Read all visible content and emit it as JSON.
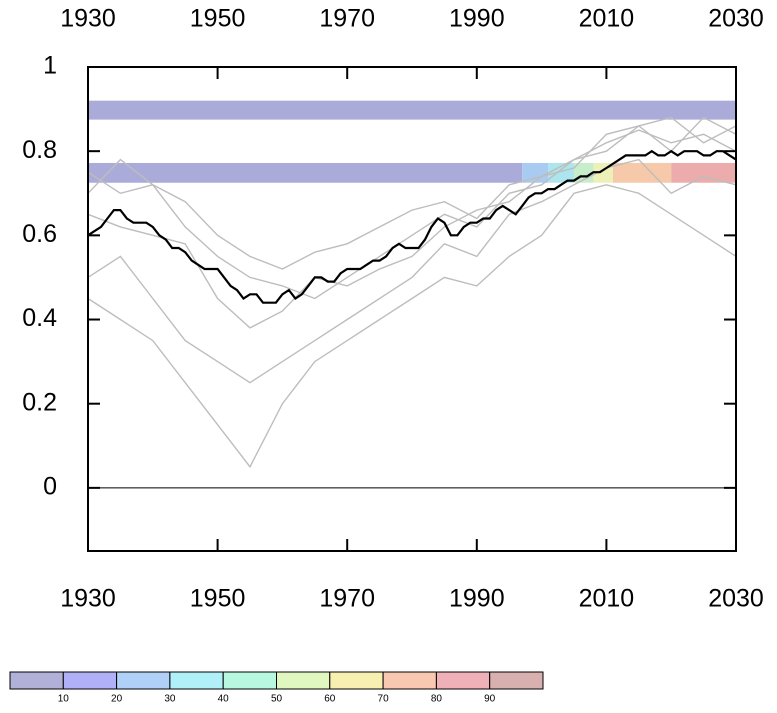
{
  "chart_data": {
    "type": "line",
    "xlim": [
      1930,
      2030
    ],
    "ylim": [
      -0.15,
      1
    ],
    "xticks": [
      1930,
      1950,
      1970,
      1990,
      2010,
      2030
    ],
    "yticks": [
      0,
      0.2,
      0.4,
      0.6,
      0.8,
      1
    ],
    "hline": 0,
    "bands": [
      {
        "xlim": [
          1930,
          2030
        ],
        "ylim": [
          0.875,
          0.92
        ],
        "color": "#a6a6d8"
      },
      {
        "xlim": [
          1930,
          1997
        ],
        "ylim": [
          0.725,
          0.772
        ],
        "color": "#a6a6d8"
      },
      {
        "xlim": [
          1997,
          2001
        ],
        "ylim": [
          0.725,
          0.772
        ],
        "color": "#a4c8f0"
      },
      {
        "xlim": [
          2001,
          2005
        ],
        "ylim": [
          0.725,
          0.772
        ],
        "color": "#a8e4ec"
      },
      {
        "xlim": [
          2005,
          2008
        ],
        "ylim": [
          0.725,
          0.772
        ],
        "color": "#c4ecc8"
      },
      {
        "xlim": [
          2008,
          2011
        ],
        "ylim": [
          0.725,
          0.772
        ],
        "color": "#ecf0b4"
      },
      {
        "xlim": [
          2011,
          2020
        ],
        "ylim": [
          0.725,
          0.772
        ],
        "color": "#f4c6a4"
      },
      {
        "xlim": [
          2020,
          2030
        ],
        "ylim": [
          0.725,
          0.772
        ],
        "color": "#eca8a8"
      }
    ],
    "series": [
      {
        "color": "#bdbdbd",
        "x": [
          1930,
          1935,
          1940,
          1945,
          1950,
          1955,
          1960,
          1965,
          1970,
          1975,
          1980,
          1985,
          1990,
          1995,
          2000,
          2005,
          2010,
          2015,
          2020,
          2025,
          2030
        ],
        "values": [
          0.7,
          0.78,
          0.72,
          0.62,
          0.55,
          0.5,
          0.48,
          0.45,
          0.5,
          0.55,
          0.6,
          0.65,
          0.62,
          0.7,
          0.72,
          0.78,
          0.82,
          0.85,
          0.82,
          0.84,
          0.8
        ]
      },
      {
        "color": "#bdbdbd",
        "x": [
          1930,
          1935,
          1940,
          1945,
          1950,
          1955,
          1960,
          1965,
          1970,
          1975,
          1980,
          1985,
          1990,
          1995,
          2000,
          2005,
          2010,
          2015,
          2020,
          2025,
          2030
        ],
        "values": [
          0.5,
          0.55,
          0.45,
          0.35,
          0.3,
          0.25,
          0.3,
          0.35,
          0.4,
          0.45,
          0.5,
          0.58,
          0.55,
          0.65,
          0.68,
          0.72,
          0.76,
          0.78,
          0.7,
          0.74,
          0.72
        ]
      },
      {
        "color": "#bdbdbd",
        "x": [
          1930,
          1935,
          1940,
          1945,
          1950,
          1955,
          1960,
          1965,
          1970,
          1975,
          1980,
          1985,
          1990,
          1995,
          2000,
          2005,
          2010,
          2015,
          2020,
          2025,
          2030
        ],
        "values": [
          0.65,
          0.62,
          0.6,
          0.58,
          0.45,
          0.38,
          0.42,
          0.5,
          0.48,
          0.52,
          0.55,
          0.62,
          0.66,
          0.68,
          0.74,
          0.78,
          0.8,
          0.86,
          0.88,
          0.82,
          0.86
        ]
      },
      {
        "color": "#bdbdbd",
        "x": [
          1930,
          1935,
          1940,
          1945,
          1950,
          1955,
          1960,
          1965,
          1970,
          1975,
          1980,
          1985,
          1990,
          1995,
          2000,
          2005,
          2010,
          2015,
          2020,
          2025,
          2030
        ],
        "values": [
          0.45,
          0.4,
          0.35,
          0.25,
          0.15,
          0.05,
          0.2,
          0.3,
          0.35,
          0.4,
          0.45,
          0.5,
          0.48,
          0.55,
          0.6,
          0.7,
          0.72,
          0.7,
          0.65,
          0.6,
          0.55
        ]
      },
      {
        "color": "#bdbdbd",
        "x": [
          1930,
          1935,
          1940,
          1945,
          1950,
          1955,
          1960,
          1965,
          1970,
          1975,
          1980,
          1985,
          1990,
          1995,
          2000,
          2005,
          2010,
          2015,
          2020,
          2025,
          2030
        ],
        "values": [
          0.75,
          0.7,
          0.72,
          0.68,
          0.6,
          0.55,
          0.52,
          0.56,
          0.58,
          0.62,
          0.66,
          0.68,
          0.64,
          0.72,
          0.74,
          0.76,
          0.84,
          0.86,
          0.8,
          0.88,
          0.84
        ]
      },
      {
        "color": "#000000",
        "x": [
          1930,
          1931,
          1932,
          1933,
          1934,
          1935,
          1936,
          1937,
          1938,
          1939,
          1940,
          1941,
          1942,
          1943,
          1944,
          1945,
          1946,
          1947,
          1948,
          1949,
          1950,
          1951,
          1952,
          1953,
          1954,
          1955,
          1956,
          1957,
          1958,
          1959,
          1960,
          1961,
          1962,
          1963,
          1964,
          1965,
          1966,
          1967,
          1968,
          1969,
          1970,
          1971,
          1972,
          1973,
          1974,
          1975,
          1976,
          1977,
          1978,
          1979,
          1980,
          1981,
          1982,
          1983,
          1984,
          1985,
          1986,
          1987,
          1988,
          1989,
          1990,
          1991,
          1992,
          1993,
          1994,
          1995,
          1996,
          1997,
          1998,
          1999,
          2000,
          2001,
          2002,
          2003,
          2004,
          2005,
          2006,
          2007,
          2008,
          2009,
          2010,
          2011,
          2012,
          2013,
          2014,
          2015,
          2016,
          2017,
          2018,
          2019,
          2020,
          2021,
          2022,
          2023,
          2024,
          2025,
          2026,
          2027,
          2028,
          2029,
          2030
        ],
        "values": [
          0.6,
          0.61,
          0.62,
          0.64,
          0.66,
          0.66,
          0.64,
          0.63,
          0.63,
          0.63,
          0.62,
          0.6,
          0.59,
          0.57,
          0.57,
          0.56,
          0.54,
          0.53,
          0.52,
          0.52,
          0.52,
          0.5,
          0.48,
          0.47,
          0.45,
          0.46,
          0.46,
          0.44,
          0.44,
          0.44,
          0.46,
          0.47,
          0.45,
          0.46,
          0.48,
          0.5,
          0.5,
          0.49,
          0.49,
          0.51,
          0.52,
          0.52,
          0.52,
          0.53,
          0.54,
          0.54,
          0.55,
          0.57,
          0.58,
          0.57,
          0.57,
          0.57,
          0.59,
          0.62,
          0.64,
          0.63,
          0.6,
          0.6,
          0.62,
          0.63,
          0.63,
          0.64,
          0.64,
          0.66,
          0.67,
          0.66,
          0.65,
          0.67,
          0.69,
          0.7,
          0.7,
          0.71,
          0.71,
          0.72,
          0.73,
          0.73,
          0.74,
          0.74,
          0.75,
          0.75,
          0.76,
          0.77,
          0.78,
          0.79,
          0.79,
          0.79,
          0.79,
          0.8,
          0.79,
          0.79,
          0.8,
          0.79,
          0.8,
          0.8,
          0.8,
          0.79,
          0.79,
          0.8,
          0.8,
          0.79,
          0.78
        ]
      }
    ],
    "colorbar": {
      "colors": [
        "#b0b0d8",
        "#b0b0f8",
        "#b0d0f8",
        "#b0f0f8",
        "#b8f8e0",
        "#e0f8c0",
        "#f8f0b0",
        "#f8c8b0",
        "#f0b0b8",
        "#d8b0b0"
      ],
      "labels": [
        10,
        20,
        30,
        40,
        50,
        60,
        70,
        80,
        90
      ]
    }
  }
}
